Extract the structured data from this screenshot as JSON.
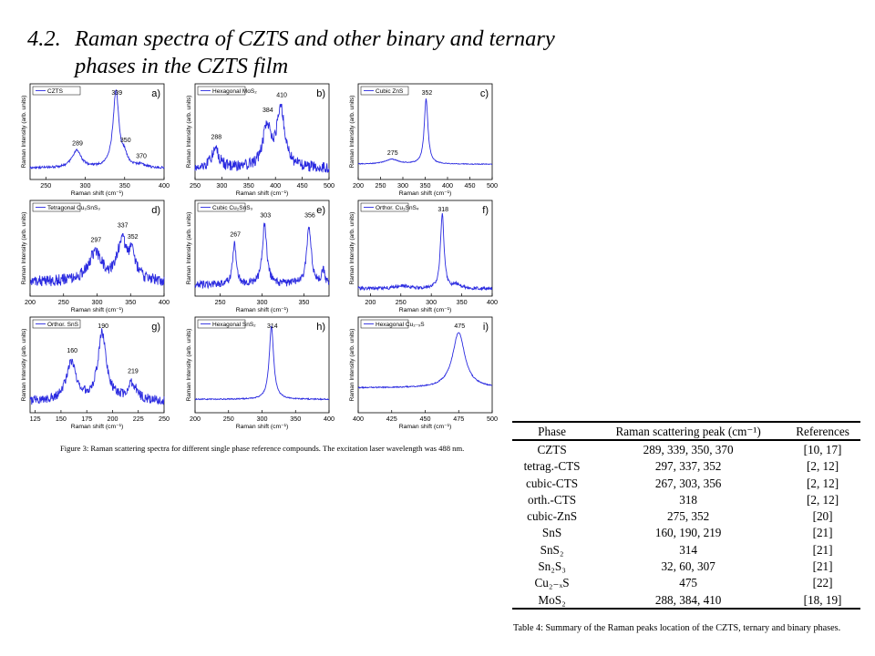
{
  "section": {
    "number": "4.2.",
    "title_line1": "Raman spectra of CZTS and other binary and ternary",
    "title_line2": "phases in the CZTS film"
  },
  "figure": {
    "caption": "Figure 3: Raman scattering spectra for different single phase reference compounds. The excitation laser wavelength was 488 nm.",
    "line_color": "#2b2be0",
    "ylabel": "Raman Intensity (arb. units)",
    "xlabel": "Raman shift (cm⁻¹)"
  },
  "chart_data": [
    {
      "type": "line",
      "panel": "a)",
      "legend": "CZTS",
      "xticks": [
        250,
        300,
        350,
        400
      ],
      "xlim": [
        230,
        400
      ],
      "peak_labels": [
        289,
        339,
        350,
        370
      ],
      "baseline": 0.12,
      "noise": 0.012,
      "peaks": [
        {
          "x": 289,
          "h": 0.18,
          "w": 7
        },
        {
          "x": 339,
          "h": 0.8,
          "w": 4.5
        },
        {
          "x": 350,
          "h": 0.1,
          "w": 4
        },
        {
          "x": 370,
          "h": 0.03,
          "w": 6
        }
      ]
    },
    {
      "type": "line",
      "panel": "b)",
      "legend": "Hexagonal MoS₂",
      "xticks": [
        250,
        300,
        350,
        400,
        450,
        500
      ],
      "xlim": [
        250,
        500
      ],
      "peak_labels": [
        288,
        384,
        410
      ],
      "baseline": 0.12,
      "noise": 0.06,
      "peaks": [
        {
          "x": 288,
          "h": 0.2,
          "w": 8
        },
        {
          "x": 384,
          "h": 0.42,
          "w": 9
        },
        {
          "x": 410,
          "h": 0.6,
          "w": 9
        }
      ]
    },
    {
      "type": "line",
      "panel": "c)",
      "legend": "Cubic ZnS",
      "xticks": [
        200,
        250,
        300,
        350,
        400,
        450,
        500
      ],
      "xlim": [
        200,
        500
      ],
      "peak_labels": [
        275,
        352
      ],
      "baseline": 0.16,
      "noise": 0.004,
      "peaks": [
        {
          "x": 275,
          "h": 0.05,
          "w": 18
        },
        {
          "x": 352,
          "h": 0.68,
          "w": 5
        }
      ]
    },
    {
      "type": "line",
      "panel": "d)",
      "legend": "Tetragonal Cu₂SnS₃",
      "xticks": [
        200,
        250,
        300,
        350,
        400
      ],
      "xlim": [
        200,
        400
      ],
      "peak_labels": [
        297,
        337,
        352
      ],
      "baseline": 0.15,
      "noise": 0.06,
      "peaks": [
        {
          "x": 297,
          "h": 0.3,
          "w": 12
        },
        {
          "x": 337,
          "h": 0.4,
          "w": 8
        },
        {
          "x": 352,
          "h": 0.25,
          "w": 7
        }
      ]
    },
    {
      "type": "line",
      "panel": "e)",
      "legend": "Cubic Cu₂SnS₃",
      "xticks": [
        250,
        300,
        350
      ],
      "xlim": [
        220,
        380
      ],
      "peak_labels": [
        267,
        303,
        356
      ],
      "baseline": 0.12,
      "noise": 0.04,
      "peaks": [
        {
          "x": 267,
          "h": 0.42,
          "w": 2.5
        },
        {
          "x": 303,
          "h": 0.62,
          "w": 3.2
        },
        {
          "x": 356,
          "h": 0.62,
          "w": 3.2
        },
        {
          "x": 373,
          "h": 0.15,
          "w": 2
        }
      ]
    },
    {
      "type": "line",
      "panel": "f)",
      "legend": "Orthor. Cu₃SnS₄",
      "xticks": [
        200,
        250,
        300,
        350,
        400
      ],
      "xlim": [
        180,
        400
      ],
      "peak_labels": [
        318
      ],
      "baseline": 0.08,
      "noise": 0.018,
      "peaks": [
        {
          "x": 318,
          "h": 0.78,
          "w": 3.5
        },
        {
          "x": 250,
          "h": 0.03,
          "w": 10
        },
        {
          "x": 343,
          "h": 0.04,
          "w": 6
        }
      ]
    },
    {
      "type": "line",
      "panel": "g)",
      "legend": "Orthor. SnS",
      "xticks": [
        125,
        150,
        175,
        200,
        225,
        250
      ],
      "xlim": [
        120,
        250
      ],
      "peak_labels": [
        160,
        190,
        219
      ],
      "baseline": 0.12,
      "noise": 0.05,
      "peaks": [
        {
          "x": 160,
          "h": 0.4,
          "w": 6
        },
        {
          "x": 190,
          "h": 0.7,
          "w": 5
        },
        {
          "x": 219,
          "h": 0.18,
          "w": 5
        }
      ]
    },
    {
      "type": "line",
      "panel": "h)",
      "legend": "Hexagonal SnS₂",
      "xticks": [
        200,
        250,
        300,
        350,
        400
      ],
      "xlim": [
        200,
        400
      ],
      "peak_labels": [
        314
      ],
      "baseline": 0.14,
      "noise": 0.006,
      "peaks": [
        {
          "x": 314,
          "h": 0.76,
          "w": 4
        }
      ]
    },
    {
      "type": "line",
      "panel": "i)",
      "legend": "Hexagonal Cu₂₋ₓS",
      "xticks": [
        400,
        425,
        450,
        475,
        500
      ],
      "xlim": [
        400,
        500
      ],
      "peak_labels": [
        475
      ],
      "baseline": 0.26,
      "noise": 0.006,
      "peaks": [
        {
          "x": 475,
          "h": 0.58,
          "w": 5.5
        }
      ]
    }
  ],
  "table": {
    "headers": [
      "Phase",
      "Raman scattering peak (cm⁻¹)",
      "References"
    ],
    "rows": [
      [
        "CZTS",
        "289, 339, 350, 370",
        "[10, 17]"
      ],
      [
        "tetrag.-CTS",
        "297, 337, 352",
        "[2, 12]"
      ],
      [
        "cubic-CTS",
        "267, 303, 356",
        "[2, 12]"
      ],
      [
        "orth.-CTS",
        "318",
        "[2, 12]"
      ],
      [
        "cubic-ZnS",
        "275, 352",
        "[20]"
      ],
      [
        "SnS",
        "160, 190, 219",
        "[21]"
      ],
      [
        "SnS₂",
        "314",
        "[21]"
      ],
      [
        "Sn₂S₃",
        "32, 60, 307",
        "[21]"
      ],
      [
        "Cu₂₋ₓS",
        "475",
        "[22]"
      ],
      [
        "MoS₂",
        "288, 384, 410",
        "[18, 19]"
      ]
    ],
    "caption": "Table 4: Summary of the Raman peaks location of the CZTS, ternary and binary phases."
  }
}
